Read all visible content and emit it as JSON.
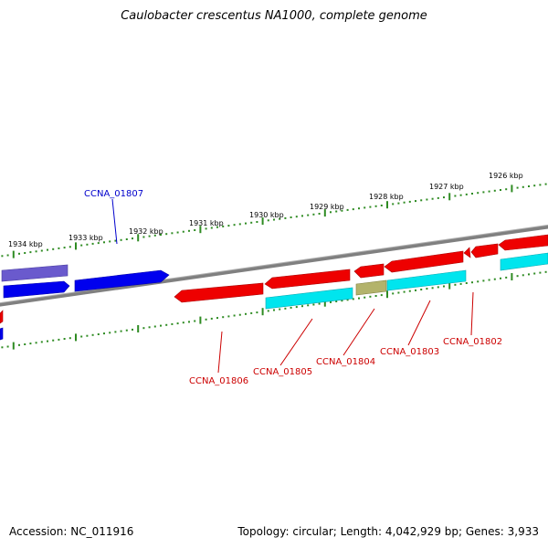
{
  "title": "Caulobacter crescentus NA1000, complete genome",
  "footer": {
    "accession": "Accession: NC_011916",
    "summary": "Topology: circular; Length: 4,042,929 bp; Genes: 3,933"
  },
  "ticks": [
    "1934 kbp",
    "1933 kbp",
    "1932 kbp",
    "1931 kbp",
    "1930 kbp",
    "1929 kbp",
    "1928 kbp",
    "1927 kbp",
    "1926 kbp"
  ],
  "gene_labels": [
    {
      "text": "CCNA_01807",
      "color": "#0000cc"
    },
    {
      "text": "CCNA_01806",
      "color": "#cc0000"
    },
    {
      "text": "CCNA_01805",
      "color": "#cc0000"
    },
    {
      "text": "CCNA_01804",
      "color": "#cc0000"
    },
    {
      "text": "CCNA_01803",
      "color": "#cc0000"
    },
    {
      "text": "CCNA_01802",
      "color": "#cc0000"
    }
  ],
  "colors": {
    "backbone": "#808080",
    "tick": "#2e8b22",
    "gene_forward": "#0000ee",
    "gene_forward_light": "#6a5acd",
    "gene_reverse": "#ee0000",
    "cds_cyan": "#00e5ee",
    "cds_olive": "#b3b36b"
  }
}
